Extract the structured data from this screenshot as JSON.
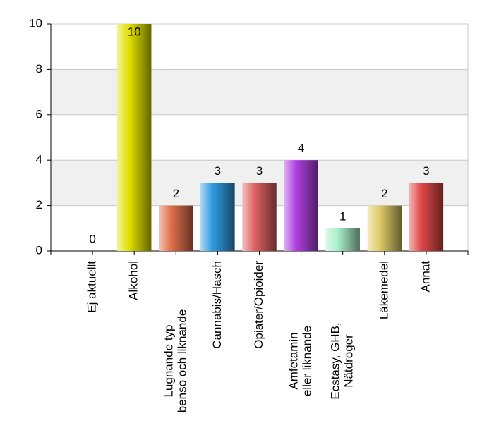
{
  "chart_data": {
    "type": "bar",
    "categories": [
      [
        "Ej aktuellt"
      ],
      [
        "Alkohol"
      ],
      [
        "Lugnande typ",
        "benso och liknande"
      ],
      [
        "Cannabis/Hasch"
      ],
      [
        "Opiater/Opioider"
      ],
      [
        "Amfetamin",
        "eller liknande"
      ],
      [
        "Ecstasy, GHB,",
        "Nätdroger"
      ],
      [
        "Läkemedel"
      ],
      [
        "Annat"
      ]
    ],
    "values": [
      0,
      10,
      2,
      3,
      3,
      4,
      1,
      2,
      3
    ],
    "colors": [
      "#888888",
      "#e0e000",
      "#e0704c",
      "#2f9be0",
      "#e06464",
      "#b040e0",
      "#a8f0c8",
      "#e0cc68",
      "#e04848"
    ],
    "ylim": [
      0,
      10
    ],
    "yticks": [
      0,
      2,
      4,
      6,
      8,
      10
    ],
    "grid": true
  }
}
